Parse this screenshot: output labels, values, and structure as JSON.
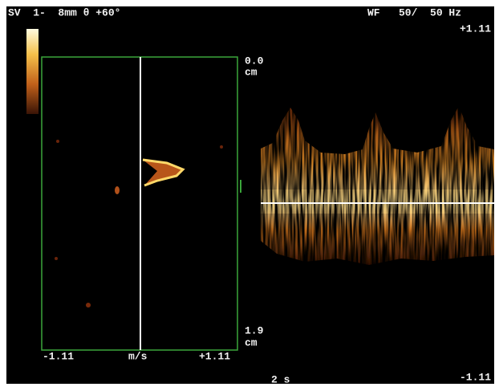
{
  "header": {
    "left": "SV  1-  8mm θ +60°",
    "right": "WF   50/  50 Hz"
  },
  "velocity_scale": {
    "top": "+1.11",
    "bottom": "-1.11"
  },
  "depth": {
    "top_value": "0.0",
    "top_unit": "cm",
    "bottom_value": "1.9",
    "bottom_unit": "cm"
  },
  "gate_axis": {
    "left": "-1.11",
    "unit": "m/s",
    "right": "+1.11"
  },
  "time_scale": "2 s"
}
